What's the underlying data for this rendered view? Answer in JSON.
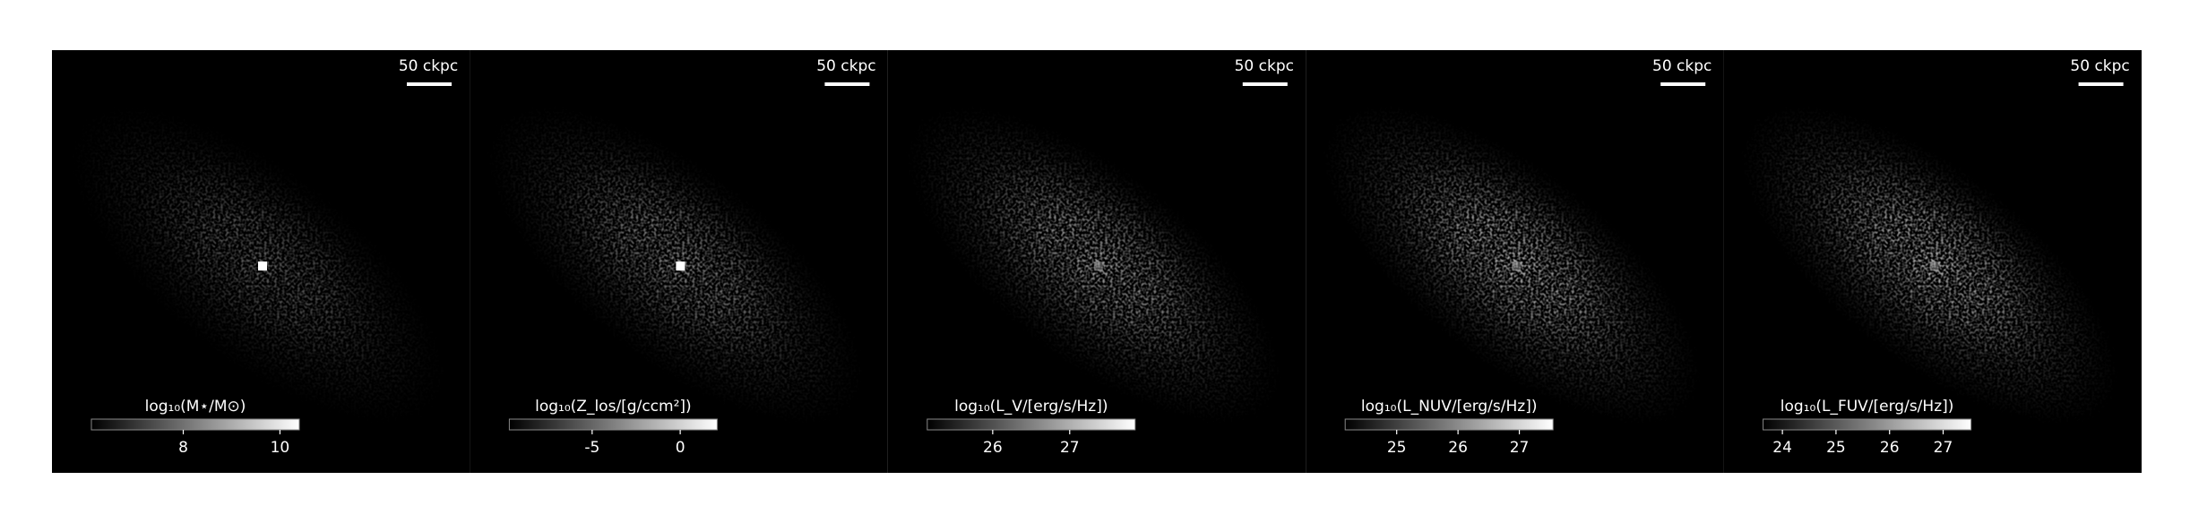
{
  "chart_data": [
    {
      "type": "image-map",
      "scalebar": "50 ckpc",
      "colorbar_label": "log₁₀(M⋆/M⊙)",
      "clim": [
        6.1,
        10.4
      ],
      "cticks": [
        8,
        10
      ]
    },
    {
      "type": "image-map",
      "scalebar": "50 ckpc",
      "colorbar_label": "log₁₀(Z_los/[g/ccm²])",
      "clim": [
        -9.7,
        2.1
      ],
      "cticks": [
        -5,
        0
      ]
    },
    {
      "type": "image-map",
      "scalebar": "50 ckpc",
      "colorbar_label": "log₁₀(L_V/[erg/s/Hz])",
      "clim": [
        25.15,
        27.85
      ],
      "cticks": [
        26,
        27
      ]
    },
    {
      "type": "image-map",
      "scalebar": "50 ckpc",
      "colorbar_label": "log₁₀(L_NUV/[erg/s/Hz])",
      "clim": [
        24.16,
        27.55
      ],
      "cticks": [
        25,
        26,
        27
      ]
    },
    {
      "type": "image-map",
      "scalebar": "50 ckpc",
      "colorbar_label": "log₁₀(L_FUV/[erg/s/Hz])",
      "clim": [
        23.64,
        27.52
      ],
      "cticks": [
        24,
        25,
        26,
        27
      ]
    }
  ]
}
